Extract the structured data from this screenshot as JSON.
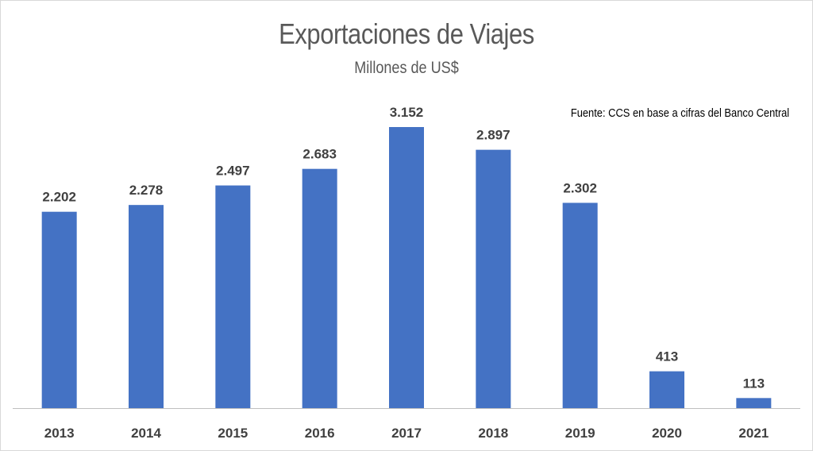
{
  "chart_data": {
    "type": "bar",
    "title": "Exportaciones de Viajes",
    "subtitle": "Millones de US$",
    "annotation": "Fuente: CCS en base a cifras del Banco Central",
    "categories": [
      "2013",
      "2014",
      "2015",
      "2016",
      "2017",
      "2018",
      "2019",
      "2020",
      "2021"
    ],
    "values": [
      2202,
      2278,
      2497,
      2683,
      3152,
      2897,
      2302,
      413,
      113
    ],
    "data_labels": [
      "2.202",
      "2.278",
      "2.497",
      "2.683",
      "3.152",
      "2.897",
      "2.302",
      "413",
      "113"
    ],
    "bar_color": "#4472c4",
    "ylim": [
      0,
      3500
    ],
    "grid": false,
    "legend": "none"
  }
}
